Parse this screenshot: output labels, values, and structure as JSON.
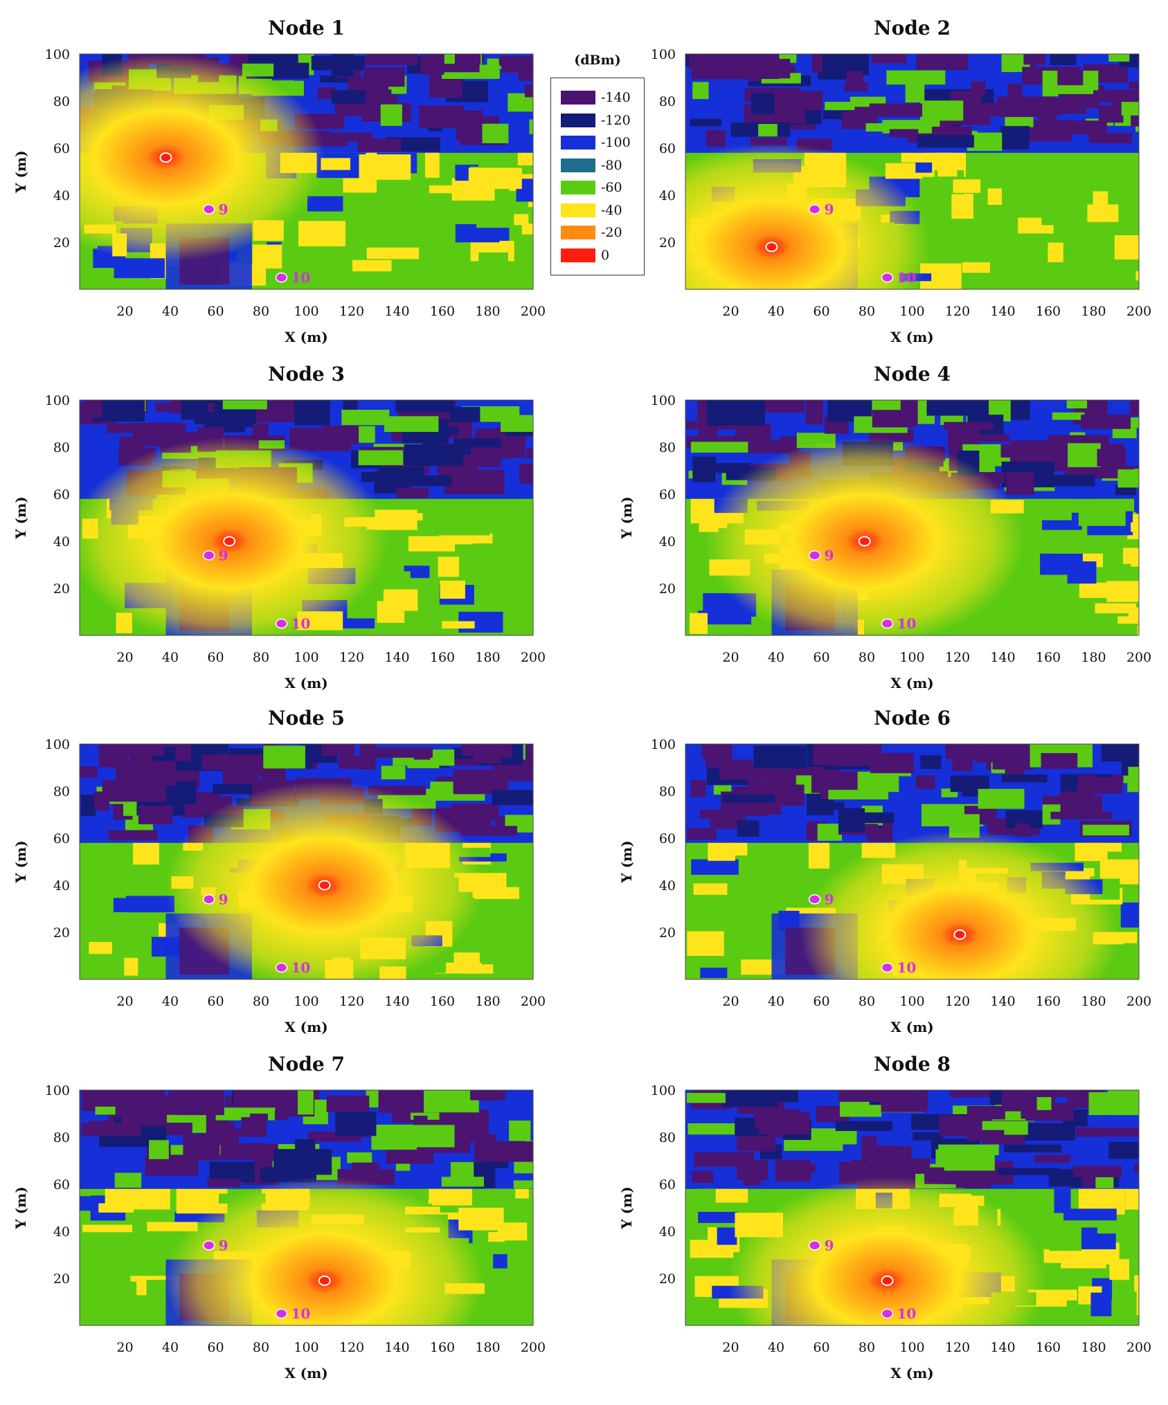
{
  "chart_data": {
    "type": "heatmap",
    "panel_xlabel": "X (m)",
    "panel_ylabel": "Y (m)",
    "xlim": [
      0,
      200
    ],
    "ylim": [
      0,
      100
    ],
    "xticks": [
      "20",
      "40",
      "60",
      "80",
      "100",
      "120",
      "140",
      "160",
      "180",
      "200"
    ],
    "yticks": [
      "20",
      "40",
      "60",
      "80",
      "100"
    ],
    "colorbar": {
      "unit": "(dBm)",
      "levels": [
        {
          "label": "-140",
          "color": "#4b1470"
        },
        {
          "label": "-120",
          "color": "#141c78"
        },
        {
          "label": "-100",
          "color": "#1530d8"
        },
        {
          "label": "-80",
          "color": "#1e6e8c"
        },
        {
          "label": "-60",
          "color": "#5acb12"
        },
        {
          "label": "-40",
          "color": "#ffe41c"
        },
        {
          "label": "-20",
          "color": "#ff8c12"
        },
        {
          "label": "0",
          "color": "#ff1e0e"
        }
      ]
    },
    "reference_nodes": [
      {
        "label": "9",
        "x": 57,
        "y": 34
      },
      {
        "label": "10",
        "x": 89,
        "y": 5
      }
    ],
    "panels": [
      {
        "title": "Node 1",
        "tx": {
          "x": 38,
          "y": 56
        }
      },
      {
        "title": "Node 2",
        "tx": {
          "x": 38,
          "y": 18
        }
      },
      {
        "title": "Node 3",
        "tx": {
          "x": 66,
          "y": 40
        }
      },
      {
        "title": "Node 4",
        "tx": {
          "x": 79,
          "y": 40
        }
      },
      {
        "title": "Node 5",
        "tx": {
          "x": 108,
          "y": 40
        }
      },
      {
        "title": "Node 6",
        "tx": {
          "x": 121,
          "y": 19
        }
      },
      {
        "title": "Node 7",
        "tx": {
          "x": 108,
          "y": 19
        }
      },
      {
        "title": "Node 8",
        "tx": {
          "x": 89,
          "y": 19
        }
      }
    ]
  }
}
